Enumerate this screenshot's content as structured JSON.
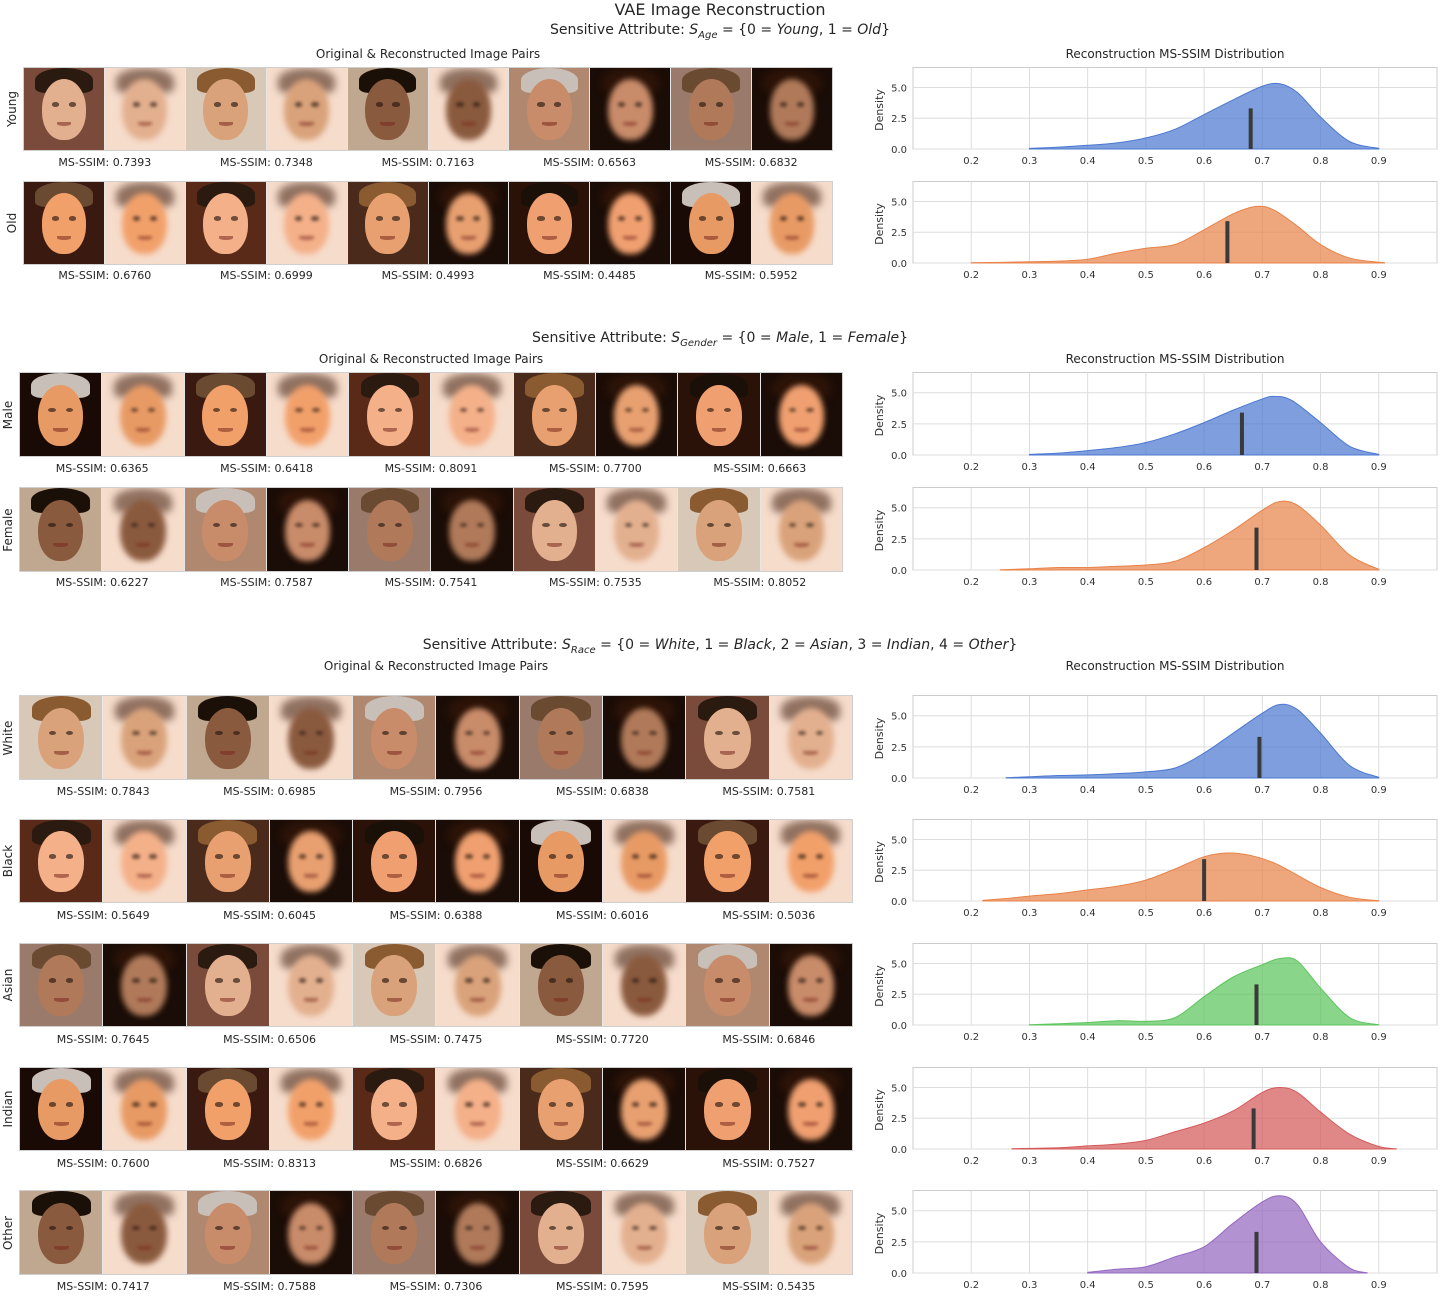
{
  "title": "VAE Image Reconstruction",
  "colors": {
    "blue": "#4c78d0",
    "orange": "#e8834a",
    "green": "#5cc55c",
    "red": "#d45a5a",
    "purple": "#9568c0",
    "median": "#3a3a3a"
  },
  "sections": [
    {
      "title_prefix": "Sensitive Attribute:",
      "title_math": "S_Age = {0 = Young, 1 = Old}",
      "left_title": "Original & Reconstructed Image Pairs",
      "right_title": "Reconstruction MS-SSIM Distribution",
      "rows": [
        {
          "label": "Young",
          "color": "blue",
          "scores": [
            "MS-SSIM: 0.7393",
            "MS-SSIM: 0.7348",
            "MS-SSIM: 0.7163",
            "MS-SSIM: 0.6563",
            "MS-SSIM: 0.6832"
          ]
        },
        {
          "label": "Old",
          "color": "orange",
          "scores": [
            "MS-SSIM: 0.6760",
            "MS-SSIM: 0.6999",
            "MS-SSIM: 0.4993",
            "MS-SSIM: 0.4485",
            "MS-SSIM: 0.5952"
          ]
        }
      ]
    },
    {
      "title_prefix": "Sensitive Attribute:",
      "title_math": "S_Gender = {0 = Male, 1 = Female}",
      "left_title": "Original & Reconstructed Image Pairs",
      "right_title": "Reconstruction MS-SSIM Distribution",
      "rows": [
        {
          "label": "Male",
          "color": "blue",
          "scores": [
            "MS-SSIM: 0.6365",
            "MS-SSIM: 0.6418",
            "MS-SSIM: 0.8091",
            "MS-SSIM: 0.7700",
            "MS-SSIM: 0.6663"
          ]
        },
        {
          "label": "Female",
          "color": "orange",
          "scores": [
            "MS-SSIM: 0.6227",
            "MS-SSIM: 0.7587",
            "MS-SSIM: 0.7541",
            "MS-SSIM: 0.7535",
            "MS-SSIM: 0.8052"
          ]
        }
      ]
    },
    {
      "title_prefix": "Sensitive Attribute:",
      "title_math": "S_Race = {0 = White, 1 = Black, 2 = Asian, 3 = Indian, 4 = Other}",
      "left_title": "Original & Reconstructed Image Pairs",
      "right_title": "Reconstruction MS-SSIM Distribution",
      "rows": [
        {
          "label": "White",
          "color": "blue",
          "scores": [
            "MS-SSIM: 0.7843",
            "MS-SSIM: 0.6985",
            "MS-SSIM: 0.7956",
            "MS-SSIM: 0.6838",
            "MS-SSIM: 0.7581"
          ]
        },
        {
          "label": "Black",
          "color": "orange",
          "scores": [
            "MS-SSIM: 0.5649",
            "MS-SSIM: 0.6045",
            "MS-SSIM: 0.6388",
            "MS-SSIM: 0.6016",
            "MS-SSIM: 0.5036"
          ]
        },
        {
          "label": "Asian",
          "color": "green",
          "scores": [
            "MS-SSIM: 0.7645",
            "MS-SSIM: 0.6506",
            "MS-SSIM: 0.7475",
            "MS-SSIM: 0.7720",
            "MS-SSIM: 0.6846"
          ]
        },
        {
          "label": "Indian",
          "color": "red",
          "scores": [
            "MS-SSIM: 0.7600",
            "MS-SSIM: 0.8313",
            "MS-SSIM: 0.6826",
            "MS-SSIM: 0.6629",
            "MS-SSIM: 0.7527"
          ]
        },
        {
          "label": "Other",
          "color": "purple",
          "scores": [
            "MS-SSIM: 0.7417",
            "MS-SSIM: 0.7588",
            "MS-SSIM: 0.7306",
            "MS-SSIM: 0.7595",
            "MS-SSIM: 0.5435"
          ]
        }
      ]
    }
  ],
  "chart_data": [
    {
      "type": "area",
      "group": "Young",
      "color": "blue",
      "ylabel": "Density",
      "xlim": [
        0.1,
        1.0
      ],
      "ylim": [
        0,
        6.5
      ],
      "xticks": [
        "0.2",
        "0.3",
        "0.4",
        "0.5",
        "0.6",
        "0.7",
        "0.8",
        "0.9"
      ],
      "yticks": [
        "0.0",
        "2.5",
        "5.0"
      ],
      "median": 0.68,
      "median_height": 3.3,
      "x": [
        0.3,
        0.35,
        0.4,
        0.45,
        0.5,
        0.55,
        0.6,
        0.65,
        0.7,
        0.73,
        0.76,
        0.8,
        0.85,
        0.9
      ],
      "y": [
        0.05,
        0.15,
        0.3,
        0.5,
        0.9,
        1.6,
        2.8,
        4.0,
        5.1,
        5.3,
        4.6,
        2.6,
        0.6,
        0.05
      ]
    },
    {
      "type": "area",
      "group": "Old",
      "color": "orange",
      "ylabel": "Density",
      "xlim": [
        0.1,
        1.0
      ],
      "ylim": [
        0,
        6.5
      ],
      "xticks": [
        "0.2",
        "0.3",
        "0.4",
        "0.5",
        "0.6",
        "0.7",
        "0.8",
        "0.9"
      ],
      "yticks": [
        "0.0",
        "2.5",
        "5.0"
      ],
      "median": 0.64,
      "median_height": 3.4,
      "x": [
        0.2,
        0.25,
        0.3,
        0.35,
        0.4,
        0.45,
        0.5,
        0.55,
        0.6,
        0.65,
        0.69,
        0.72,
        0.76,
        0.8,
        0.85,
        0.91
      ],
      "y": [
        0.02,
        0.05,
        0.1,
        0.15,
        0.3,
        0.8,
        1.2,
        1.5,
        2.7,
        4.0,
        4.6,
        4.3,
        3.0,
        1.5,
        0.4,
        0.02
      ]
    },
    {
      "type": "area",
      "group": "Male",
      "color": "blue",
      "ylabel": "Density",
      "xlim": [
        0.1,
        1.0
      ],
      "ylim": [
        0,
        6.5
      ],
      "xticks": [
        "0.2",
        "0.3",
        "0.4",
        "0.5",
        "0.6",
        "0.7",
        "0.8",
        "0.9"
      ],
      "yticks": [
        "0.0",
        "2.5",
        "5.0"
      ],
      "median": 0.665,
      "median_height": 3.4,
      "x": [
        0.3,
        0.35,
        0.4,
        0.45,
        0.5,
        0.55,
        0.6,
        0.65,
        0.7,
        0.72,
        0.75,
        0.8,
        0.85,
        0.9
      ],
      "y": [
        0.05,
        0.15,
        0.35,
        0.6,
        1.0,
        1.7,
        2.6,
        3.6,
        4.5,
        4.7,
        4.4,
        2.6,
        0.7,
        0.05
      ]
    },
    {
      "type": "area",
      "group": "Female",
      "color": "orange",
      "ylabel": "Density",
      "xlim": [
        0.1,
        1.0
      ],
      "ylim": [
        0,
        6.5
      ],
      "xticks": [
        "0.2",
        "0.3",
        "0.4",
        "0.5",
        "0.6",
        "0.7",
        "0.8",
        "0.9"
      ],
      "yticks": [
        "0.0",
        "2.5",
        "5.0"
      ],
      "median": 0.69,
      "median_height": 3.4,
      "x": [
        0.25,
        0.3,
        0.35,
        0.4,
        0.45,
        0.5,
        0.55,
        0.6,
        0.65,
        0.7,
        0.73,
        0.76,
        0.8,
        0.85,
        0.9
      ],
      "y": [
        0.02,
        0.1,
        0.2,
        0.2,
        0.3,
        0.4,
        0.7,
        1.8,
        3.2,
        4.8,
        5.5,
        5.2,
        3.6,
        1.2,
        0.05
      ]
    },
    {
      "type": "area",
      "group": "White",
      "color": "blue",
      "ylabel": "Density",
      "xlim": [
        0.1,
        1.0
      ],
      "ylim": [
        0,
        6.5
      ],
      "xticks": [
        "0.2",
        "0.3",
        "0.4",
        "0.5",
        "0.6",
        "0.7",
        "0.8",
        "0.9"
      ],
      "yticks": [
        "0.0",
        "2.5",
        "5.0"
      ],
      "median": 0.695,
      "median_height": 3.3,
      "x": [
        0.26,
        0.3,
        0.35,
        0.4,
        0.45,
        0.5,
        0.55,
        0.6,
        0.65,
        0.7,
        0.73,
        0.76,
        0.8,
        0.85,
        0.9
      ],
      "y": [
        0.02,
        0.1,
        0.2,
        0.25,
        0.35,
        0.5,
        0.8,
        2.0,
        3.6,
        5.2,
        5.9,
        5.5,
        3.6,
        1.0,
        0.05
      ]
    },
    {
      "type": "area",
      "group": "Black",
      "color": "orange",
      "ylabel": "Density",
      "xlim": [
        0.1,
        1.0
      ],
      "ylim": [
        0,
        6.5
      ],
      "xticks": [
        "0.2",
        "0.3",
        "0.4",
        "0.5",
        "0.6",
        "0.7",
        "0.8",
        "0.9"
      ],
      "yticks": [
        "0.0",
        "2.5",
        "5.0"
      ],
      "median": 0.6,
      "median_height": 3.4,
      "x": [
        0.22,
        0.26,
        0.3,
        0.35,
        0.4,
        0.45,
        0.5,
        0.55,
        0.6,
        0.64,
        0.68,
        0.72,
        0.76,
        0.8,
        0.85,
        0.9
      ],
      "y": [
        0.05,
        0.2,
        0.4,
        0.6,
        0.9,
        1.2,
        1.7,
        2.6,
        3.6,
        3.9,
        3.7,
        3.1,
        2.1,
        1.1,
        0.3,
        0.02
      ]
    },
    {
      "type": "area",
      "group": "Asian",
      "color": "green",
      "ylabel": "Density",
      "xlim": [
        0.1,
        1.0
      ],
      "ylim": [
        0,
        6.5
      ],
      "xticks": [
        "0.2",
        "0.3",
        "0.4",
        "0.5",
        "0.6",
        "0.7",
        "0.8",
        "0.9"
      ],
      "yticks": [
        "0.0",
        "2.5",
        "5.0"
      ],
      "median": 0.69,
      "median_height": 3.3,
      "x": [
        0.3,
        0.35,
        0.4,
        0.45,
        0.5,
        0.55,
        0.6,
        0.65,
        0.7,
        0.73,
        0.76,
        0.8,
        0.85,
        0.9
      ],
      "y": [
        0.02,
        0.1,
        0.2,
        0.35,
        0.3,
        0.6,
        2.3,
        3.9,
        4.9,
        5.4,
        5.2,
        3.0,
        0.6,
        0.02
      ]
    },
    {
      "type": "area",
      "group": "Indian",
      "color": "red",
      "ylabel": "Density",
      "xlim": [
        0.1,
        1.0
      ],
      "ylim": [
        0,
        6.5
      ],
      "xticks": [
        "0.2",
        "0.3",
        "0.4",
        "0.5",
        "0.6",
        "0.7",
        "0.8",
        "0.9"
      ],
      "yticks": [
        "0.0",
        "2.5",
        "5.0"
      ],
      "median": 0.685,
      "median_height": 3.3,
      "x": [
        0.27,
        0.3,
        0.35,
        0.4,
        0.45,
        0.5,
        0.55,
        0.6,
        0.65,
        0.7,
        0.73,
        0.76,
        0.8,
        0.85,
        0.9,
        0.93
      ],
      "y": [
        0.02,
        0.05,
        0.1,
        0.25,
        0.4,
        0.7,
        1.4,
        2.1,
        3.1,
        4.6,
        5.0,
        4.6,
        3.0,
        1.2,
        0.2,
        0.02
      ]
    },
    {
      "type": "area",
      "group": "Other",
      "color": "purple",
      "ylabel": "Density",
      "xlim": [
        0.1,
        1.0
      ],
      "ylim": [
        0,
        6.5
      ],
      "xticks": [
        "0.2",
        "0.3",
        "0.4",
        "0.5",
        "0.6",
        "0.7",
        "0.8",
        "0.9"
      ],
      "yticks": [
        "0.0",
        "2.5",
        "5.0"
      ],
      "median": 0.69,
      "median_height": 3.3,
      "x": [
        0.4,
        0.45,
        0.5,
        0.55,
        0.6,
        0.65,
        0.7,
        0.73,
        0.76,
        0.8,
        0.85,
        0.88
      ],
      "y": [
        0.05,
        0.3,
        0.5,
        1.3,
        2.1,
        4.0,
        5.7,
        6.2,
        5.5,
        2.5,
        0.4,
        0.02
      ]
    }
  ]
}
